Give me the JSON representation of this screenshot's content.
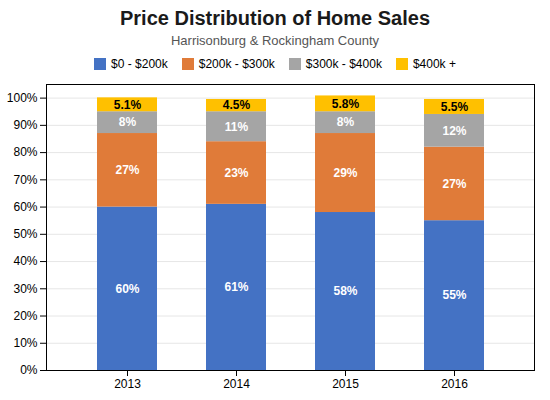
{
  "chart_data": {
    "type": "bar",
    "title": "Price Distribution of Home Sales",
    "subtitle": "Harrisonburg & Rockingham County",
    "categories": [
      "2013",
      "2014",
      "2015",
      "2016"
    ],
    "series": [
      {
        "name": "$0 - $200k",
        "color": "#4472C4",
        "values": [
          60,
          61,
          58,
          55
        ],
        "value_labels": [
          "60%",
          "61%",
          "58%",
          "55%"
        ]
      },
      {
        "name": "$200k - $300k",
        "color": "#E07B39",
        "values": [
          27,
          23,
          29,
          27
        ],
        "value_labels": [
          "27%",
          "23%",
          "29%",
          "27%"
        ]
      },
      {
        "name": "$300k - $400k",
        "color": "#A5A5A5",
        "values": [
          8,
          11,
          8,
          12
        ],
        "value_labels": [
          "8%",
          "11%",
          "8%",
          "12%"
        ]
      },
      {
        "name": "$400k +",
        "color": "#FFC000",
        "values": [
          5.1,
          4.5,
          5.8,
          5.5
        ],
        "value_labels": [
          "5.1%",
          "4.5%",
          "5.8%",
          "5.5%"
        ]
      }
    ],
    "stacked": true,
    "data_labels": true,
    "ylim": [
      0,
      105
    ],
    "yticks": [
      {
        "value": 0,
        "label": "0%"
      },
      {
        "value": 10,
        "label": "10%"
      },
      {
        "value": 20,
        "label": "20%"
      },
      {
        "value": 30,
        "label": "30%"
      },
      {
        "value": 40,
        "label": "40%"
      },
      {
        "value": 50,
        "label": "50%"
      },
      {
        "value": 60,
        "label": "60%"
      },
      {
        "value": 70,
        "label": "70%"
      },
      {
        "value": 80,
        "label": "80%"
      },
      {
        "value": 90,
        "label": "90%"
      },
      {
        "value": 100,
        "label": "100%"
      }
    ],
    "grid": true,
    "legend": "top"
  }
}
